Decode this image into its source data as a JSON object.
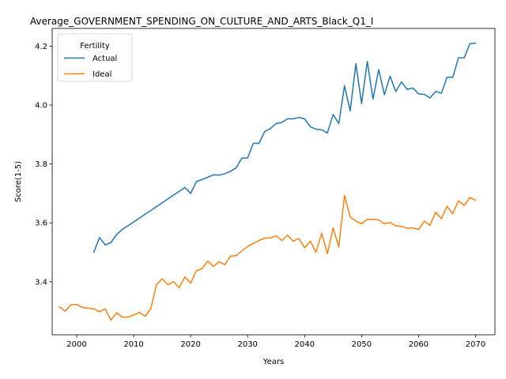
{
  "chart_data": {
    "type": "line",
    "title": "Average_GOVERNMENT_SPENDING_ON_CULTURE_AND_ARTS_Black_Q1_I",
    "xlabel": "Years",
    "ylabel": "Score(1-5)",
    "xlim": [
      1995.7,
      2073.4
    ],
    "ylim": [
      3.22,
      4.26
    ],
    "xticks": [
      2000,
      2010,
      2020,
      2030,
      2040,
      2050,
      2060,
      2070
    ],
    "yticks": [
      3.4,
      3.6,
      3.8,
      4.0,
      4.2
    ],
    "ytick_labels": [
      "3.4",
      "3.6",
      "3.8",
      "4.0",
      "4.2"
    ],
    "grid": false,
    "legend": {
      "title": "Fertility",
      "placement": "top-left"
    },
    "series": [
      {
        "name": "Actual",
        "color": "#1f77b4",
        "x": [
          2003,
          2004,
          2005,
          2006,
          2007,
          2008,
          2009,
          2010,
          2011,
          2012,
          2013,
          2014,
          2015,
          2016,
          2017,
          2018,
          2019,
          2020,
          2021,
          2022,
          2023,
          2024,
          2025,
          2026,
          2027,
          2028,
          2029,
          2030,
          2031,
          2032,
          2033,
          2034,
          2035,
          2036,
          2037,
          2038,
          2039,
          2040,
          2041,
          2042,
          2043,
          2044,
          2045,
          2046,
          2047,
          2048,
          2049,
          2050,
          2051,
          2052,
          2053,
          2054,
          2055,
          2056,
          2057,
          2058,
          2059,
          2060,
          2061,
          2062,
          2063,
          2064,
          2065,
          2066,
          2067,
          2068,
          2069,
          2070
        ],
        "values": [
          3.5,
          3.55,
          3.525,
          3.533,
          3.56,
          3.578,
          3.59,
          3.603,
          3.616,
          3.629,
          3.642,
          3.655,
          3.668,
          3.681,
          3.694,
          3.707,
          3.72,
          3.7,
          3.74,
          3.747,
          3.755,
          3.763,
          3.762,
          3.767,
          3.775,
          3.787,
          3.82,
          3.82,
          3.87,
          3.87,
          3.91,
          3.92,
          3.937,
          3.941,
          3.953,
          3.953,
          3.958,
          3.953,
          3.926,
          3.918,
          3.916,
          3.905,
          3.968,
          3.937,
          4.065,
          3.98,
          4.14,
          4.005,
          4.148,
          4.02,
          4.12,
          4.035,
          4.098,
          4.046,
          4.078,
          4.053,
          4.058,
          4.038,
          4.036,
          4.024,
          4.046,
          4.04,
          4.094,
          4.094,
          4.16,
          4.16,
          4.208,
          4.21
        ]
      },
      {
        "name": "Ideal",
        "color": "#ff7f0e",
        "x": [
          1997,
          1998,
          1999,
          2000,
          2001,
          2002,
          2003,
          2004,
          2005,
          2006,
          2007,
          2008,
          2009,
          2010,
          2011,
          2012,
          2013,
          2014,
          2015,
          2016,
          2017,
          2018,
          2019,
          2020,
          2021,
          2022,
          2023,
          2024,
          2025,
          2026,
          2027,
          2028,
          2029,
          2030,
          2031,
          2032,
          2033,
          2034,
          2035,
          2036,
          2037,
          2038,
          2039,
          2040,
          2041,
          2042,
          2043,
          2044,
          2045,
          2046,
          2047,
          2048,
          2049,
          2050,
          2051,
          2052,
          2053,
          2054,
          2055,
          2056,
          2057,
          2058,
          2059,
          2060,
          2061,
          2062,
          2063,
          2064,
          2065,
          2066,
          2067,
          2068,
          2069,
          2070
        ],
        "values": [
          3.315,
          3.3,
          3.322,
          3.323,
          3.313,
          3.31,
          3.308,
          3.298,
          3.308,
          3.27,
          3.295,
          3.28,
          3.28,
          3.287,
          3.296,
          3.283,
          3.308,
          3.39,
          3.41,
          3.39,
          3.4,
          3.38,
          3.417,
          3.395,
          3.437,
          3.445,
          3.47,
          3.452,
          3.468,
          3.458,
          3.487,
          3.489,
          3.505,
          3.52,
          3.53,
          3.54,
          3.548,
          3.549,
          3.556,
          3.54,
          3.558,
          3.538,
          3.547,
          3.515,
          3.538,
          3.5,
          3.565,
          3.495,
          3.583,
          3.518,
          3.693,
          3.62,
          3.606,
          3.597,
          3.612,
          3.612,
          3.61,
          3.597,
          3.601,
          3.59,
          3.588,
          3.582,
          3.583,
          3.577,
          3.606,
          3.592,
          3.636,
          3.614,
          3.656,
          3.631,
          3.675,
          3.659,
          3.686,
          3.677
        ]
      }
    ]
  }
}
